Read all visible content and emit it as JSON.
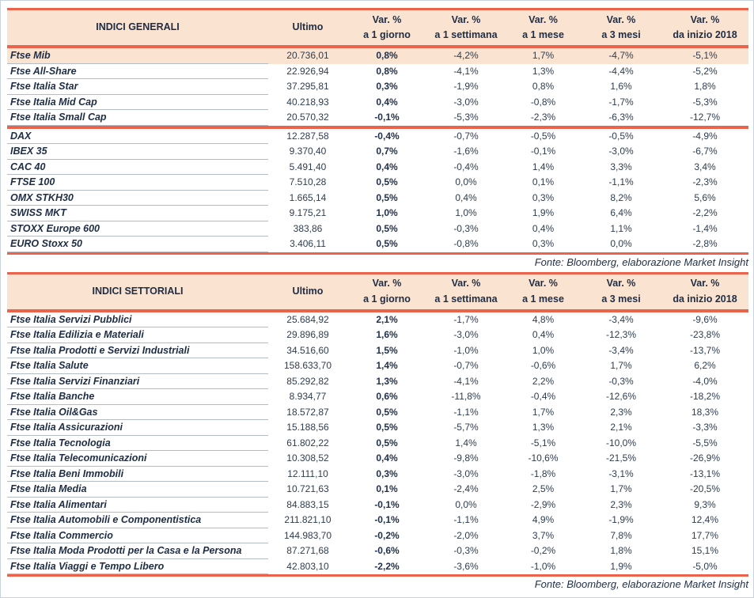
{
  "colors": {
    "accent_red": "#EB634A",
    "header_peach": "#FBE3D2",
    "highlight_row_peach": "#FBE3D2",
    "text_navy": "#1E2D44",
    "row_divider_gray": "#B4BCC6",
    "page_border_gray": "#C9D3DF"
  },
  "tables": [
    {
      "title": "INDICI GENERALI",
      "header": {
        "ultimo": "Ultimo",
        "var_label": "Var. %",
        "periods": [
          "a 1 giorno",
          "a 1 settimana",
          "a 1 mese",
          "a 3 mesi",
          "da inizio 2018"
        ]
      },
      "highlight_rows": [
        0
      ],
      "separator_after": 4,
      "rows": [
        {
          "name": "Ftse Mib",
          "ultimo": "20.736,01",
          "d1": "0,8%",
          "w1": "-4,2%",
          "m1": "1,7%",
          "m3": "-4,7%",
          "ytd": "-5,1%"
        },
        {
          "name": "Ftse All-Share",
          "ultimo": "22.926,94",
          "d1": "0,8%",
          "w1": "-4,1%",
          "m1": "1,3%",
          "m3": "-4,4%",
          "ytd": "-5,2%"
        },
        {
          "name": "Ftse Italia Star",
          "ultimo": "37.295,81",
          "d1": "0,3%",
          "w1": "-1,9%",
          "m1": "0,8%",
          "m3": "1,6%",
          "ytd": "1,8%"
        },
        {
          "name": "Ftse Italia Mid Cap",
          "ultimo": "40.218,93",
          "d1": "0,4%",
          "w1": "-3,0%",
          "m1": "-0,8%",
          "m3": "-1,7%",
          "ytd": "-5,3%"
        },
        {
          "name": "Ftse Italia Small Cap",
          "ultimo": "20.570,32",
          "d1": "-0,1%",
          "w1": "-5,3%",
          "m1": "-2,3%",
          "m3": "-6,3%",
          "ytd": "-12,7%"
        },
        {
          "name": "DAX",
          "ultimo": "12.287,58",
          "d1": "-0,4%",
          "w1": "-0,7%",
          "m1": "-0,5%",
          "m3": "-0,5%",
          "ytd": "-4,9%"
        },
        {
          "name": "IBEX 35",
          "ultimo": "9.370,40",
          "d1": "0,7%",
          "w1": "-1,6%",
          "m1": "-0,1%",
          "m3": "-3,0%",
          "ytd": "-6,7%"
        },
        {
          "name": "CAC 40",
          "ultimo": "5.491,40",
          "d1": "0,4%",
          "w1": "-0,4%",
          "m1": "1,4%",
          "m3": "3,3%",
          "ytd": "3,4%"
        },
        {
          "name": "FTSE 100",
          "ultimo": "7.510,28",
          "d1": "0,5%",
          "w1": "0,0%",
          "m1": "0,1%",
          "m3": "-1,1%",
          "ytd": "-2,3%"
        },
        {
          "name": "OMX STKH30",
          "ultimo": "1.665,14",
          "d1": "0,5%",
          "w1": "0,4%",
          "m1": "0,3%",
          "m3": "8,2%",
          "ytd": "5,6%"
        },
        {
          "name": "SWISS MKT",
          "ultimo": "9.175,21",
          "d1": "1,0%",
          "w1": "1,0%",
          "m1": "1,9%",
          "m3": "6,4%",
          "ytd": "-2,2%"
        },
        {
          "name": "STOXX Europe 600",
          "ultimo": "383,86",
          "d1": "0,5%",
          "w1": "-0,3%",
          "m1": "0,4%",
          "m3": "1,1%",
          "ytd": "-1,4%"
        },
        {
          "name": "EURO Stoxx 50",
          "ultimo": "3.406,11",
          "d1": "0,5%",
          "w1": "-0,8%",
          "m1": "0,3%",
          "m3": "0,0%",
          "ytd": "-2,8%"
        }
      ],
      "fonte": "Fonte: Bloomberg, elaborazione Market Insight"
    },
    {
      "title": "INDICI SETTORIALI",
      "header": {
        "ultimo": "Ultimo",
        "var_label": "Var. %",
        "periods": [
          "a 1 giorno",
          "a 1 settimana",
          "a 1 mese",
          "a 3 mesi",
          "da inizio 2018"
        ]
      },
      "highlight_rows": [],
      "separator_after": -1,
      "rows": [
        {
          "name": "Ftse Italia Servizi Pubblici",
          "ultimo": "25.684,92",
          "d1": "2,1%",
          "w1": "-1,7%",
          "m1": "4,8%",
          "m3": "-3,4%",
          "ytd": "-9,6%"
        },
        {
          "name": "Ftse Italia Edilizia e Materiali",
          "ultimo": "29.896,89",
          "d1": "1,6%",
          "w1": "-3,0%",
          "m1": "0,4%",
          "m3": "-12,3%",
          "ytd": "-23,8%"
        },
        {
          "name": "Ftse Italia Prodotti e Servizi Industriali",
          "ultimo": "34.516,60",
          "d1": "1,5%",
          "w1": "-1,0%",
          "m1": "1,0%",
          "m3": "-3,4%",
          "ytd": "-13,7%"
        },
        {
          "name": "Ftse Italia Salute",
          "ultimo": "158.633,70",
          "d1": "1,4%",
          "w1": "-0,7%",
          "m1": "-0,6%",
          "m3": "1,7%",
          "ytd": "6,2%"
        },
        {
          "name": "Ftse Italia Servizi Finanziari",
          "ultimo": "85.292,82",
          "d1": "1,3%",
          "w1": "-4,1%",
          "m1": "2,2%",
          "m3": "-0,3%",
          "ytd": "-4,0%"
        },
        {
          "name": "Ftse Italia Banche",
          "ultimo": "8.934,77",
          "d1": "0,6%",
          "w1": "-11,8%",
          "m1": "-0,4%",
          "m3": "-12,6%",
          "ytd": "-18,2%"
        },
        {
          "name": "Ftse Italia Oil&Gas",
          "ultimo": "18.572,87",
          "d1": "0,5%",
          "w1": "-1,1%",
          "m1": "1,7%",
          "m3": "2,3%",
          "ytd": "18,3%"
        },
        {
          "name": "Ftse Italia Assicurazioni",
          "ultimo": "15.188,56",
          "d1": "0,5%",
          "w1": "-5,7%",
          "m1": "1,3%",
          "m3": "2,1%",
          "ytd": "-3,3%"
        },
        {
          "name": "Ftse Italia Tecnologia",
          "ultimo": "61.802,22",
          "d1": "0,5%",
          "w1": "1,4%",
          "m1": "-5,1%",
          "m3": "-10,0%",
          "ytd": "-5,5%"
        },
        {
          "name": "Ftse Italia Telecomunicazioni",
          "ultimo": "10.308,52",
          "d1": "0,4%",
          "w1": "-9,8%",
          "m1": "-10,6%",
          "m3": "-21,5%",
          "ytd": "-26,9%"
        },
        {
          "name": "Ftse Italia Beni Immobili",
          "ultimo": "12.111,10",
          "d1": "0,3%",
          "w1": "-3,0%",
          "m1": "-1,8%",
          "m3": "-3,1%",
          "ytd": "-13,1%"
        },
        {
          "name": "Ftse Italia Media",
          "ultimo": "10.721,63",
          "d1": "0,1%",
          "w1": "-2,4%",
          "m1": "2,5%",
          "m3": "1,7%",
          "ytd": "-20,5%"
        },
        {
          "name": "Ftse Italia Alimentari",
          "ultimo": "84.883,15",
          "d1": "-0,1%",
          "w1": "0,0%",
          "m1": "-2,9%",
          "m3": "2,3%",
          "ytd": "9,3%"
        },
        {
          "name": "Ftse Italia Automobili e Componentistica",
          "ultimo": "211.821,10",
          "d1": "-0,1%",
          "w1": "-1,1%",
          "m1": "4,9%",
          "m3": "-1,9%",
          "ytd": "12,4%"
        },
        {
          "name": "Ftse Italia Commercio",
          "ultimo": "144.983,70",
          "d1": "-0,2%",
          "w1": "-2,0%",
          "m1": "3,7%",
          "m3": "7,8%",
          "ytd": "17,7%"
        },
        {
          "name": "Ftse Italia Moda Prodotti per la Casa e la Persona",
          "ultimo": "87.271,68",
          "d1": "-0,6%",
          "w1": "-0,3%",
          "m1": "-0,2%",
          "m3": "1,8%",
          "ytd": "15,1%"
        },
        {
          "name": "Ftse Italia Viaggi e Tempo Libero",
          "ultimo": "42.803,10",
          "d1": "-2,2%",
          "w1": "-3,6%",
          "m1": "-1,0%",
          "m3": "1,9%",
          "ytd": "-5,0%"
        }
      ],
      "fonte": "Fonte: Bloomberg, elaborazione Market Insight"
    }
  ]
}
